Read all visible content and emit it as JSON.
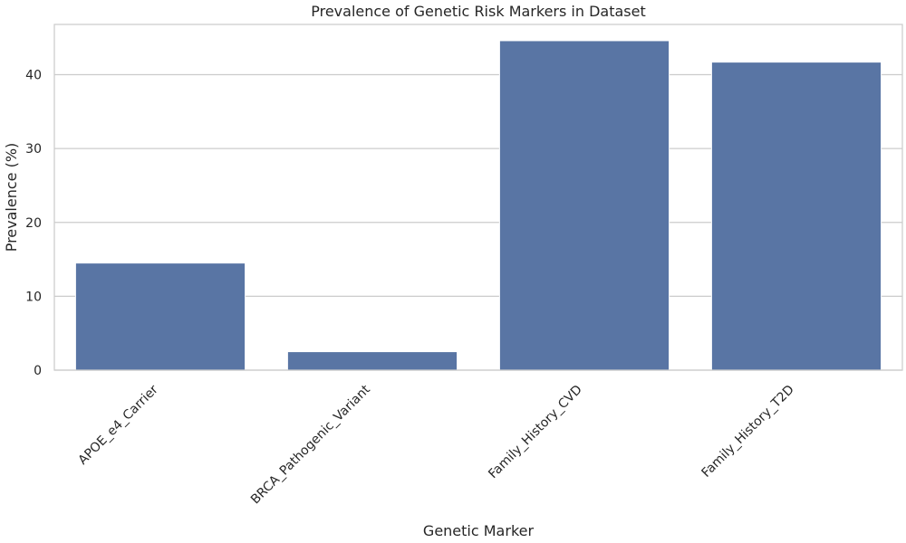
{
  "chart_data": {
    "type": "bar",
    "title": "Prevalence of Genetic Risk Markers in Dataset",
    "xlabel": "Genetic Marker",
    "ylabel": "Prevalence (%)",
    "categories": [
      "APOE_e4_Carrier",
      "BRCA_Pathogenic_Variant",
      "Family_History_CVD",
      "Family_History_T2D"
    ],
    "values": [
      14.5,
      2.5,
      44.6,
      41.7
    ],
    "yticks": [
      0,
      10,
      20,
      30,
      40
    ],
    "ylim": [
      0,
      46.8
    ],
    "grid": "y",
    "bar_color": "#5975a4",
    "grid_color": "#cccccc",
    "frame_color": "#cccccc"
  }
}
